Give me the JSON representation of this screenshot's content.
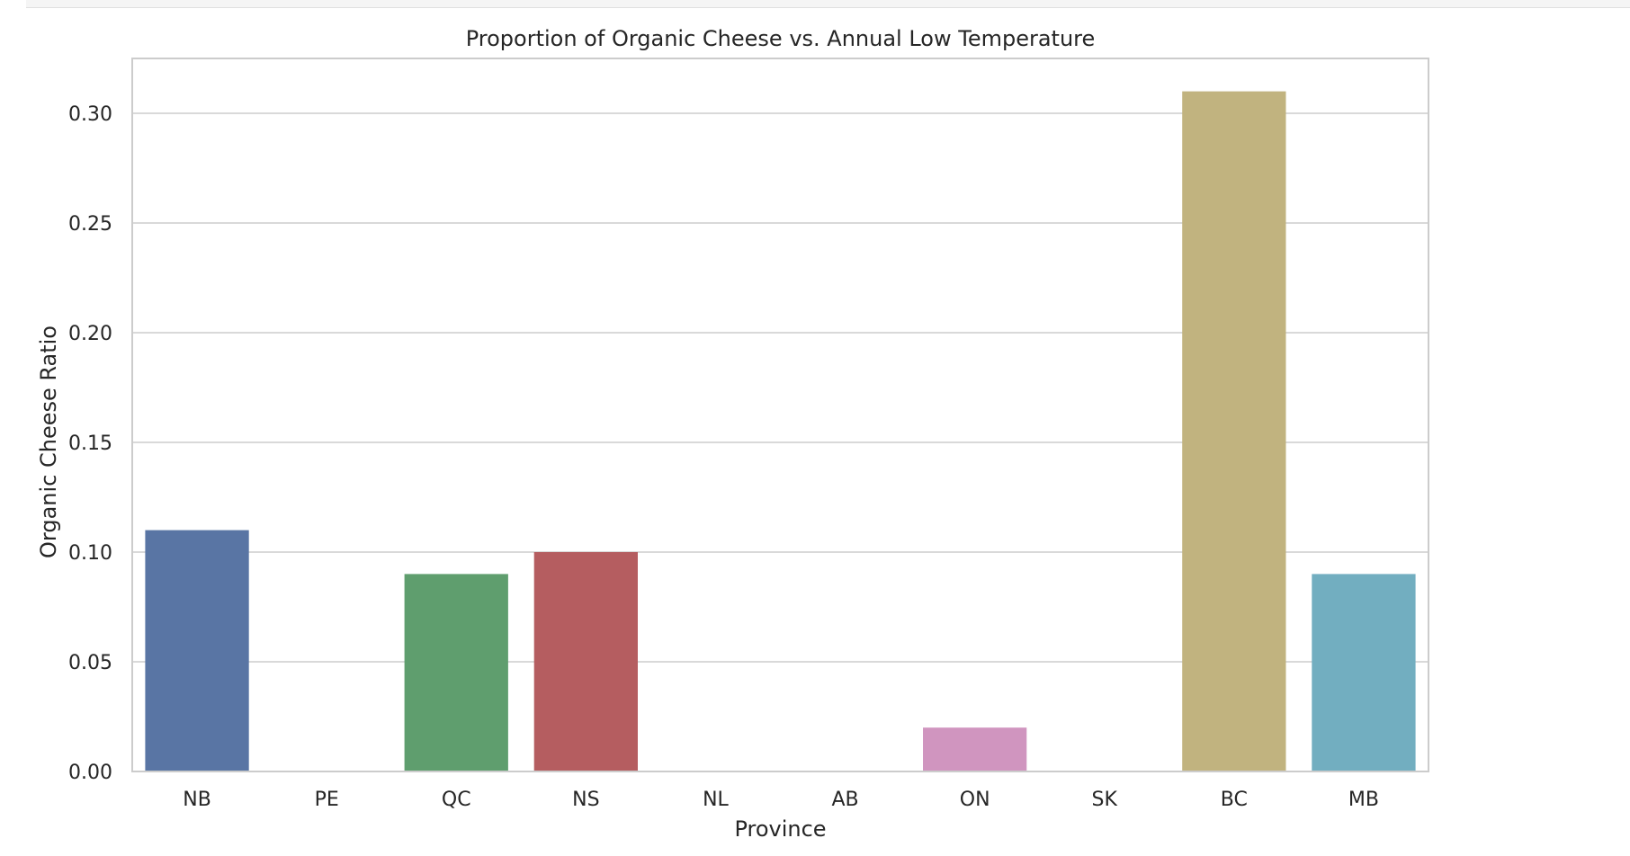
{
  "chart_data": {
    "type": "bar",
    "title": "Proportion of Organic Cheese vs. Annual Low Temperature",
    "xlabel": "Province",
    "ylabel": "Organic Cheese Ratio",
    "categories": [
      "NB",
      "PE",
      "QC",
      "NS",
      "NL",
      "AB",
      "ON",
      "SK",
      "BC",
      "MB"
    ],
    "values": [
      0.11,
      0.0,
      0.09,
      0.1,
      0.0,
      0.0,
      0.02,
      0.0,
      0.31,
      0.09
    ],
    "colors": [
      "#5975a4",
      "#cc8963",
      "#5f9e6e",
      "#b55d60",
      "#857aab",
      "#8d7866",
      "#d095bf",
      "#8c8c8c",
      "#c1b37f",
      "#72aec0"
    ],
    "ylim": [
      0,
      0.325
    ],
    "yticks": [
      0.0,
      0.05,
      0.1,
      0.15,
      0.2,
      0.25,
      0.3
    ],
    "ytick_labels": [
      "0.00",
      "0.05",
      "0.10",
      "0.15",
      "0.20",
      "0.25",
      "0.30"
    ],
    "grid": "y",
    "legend": "none"
  }
}
